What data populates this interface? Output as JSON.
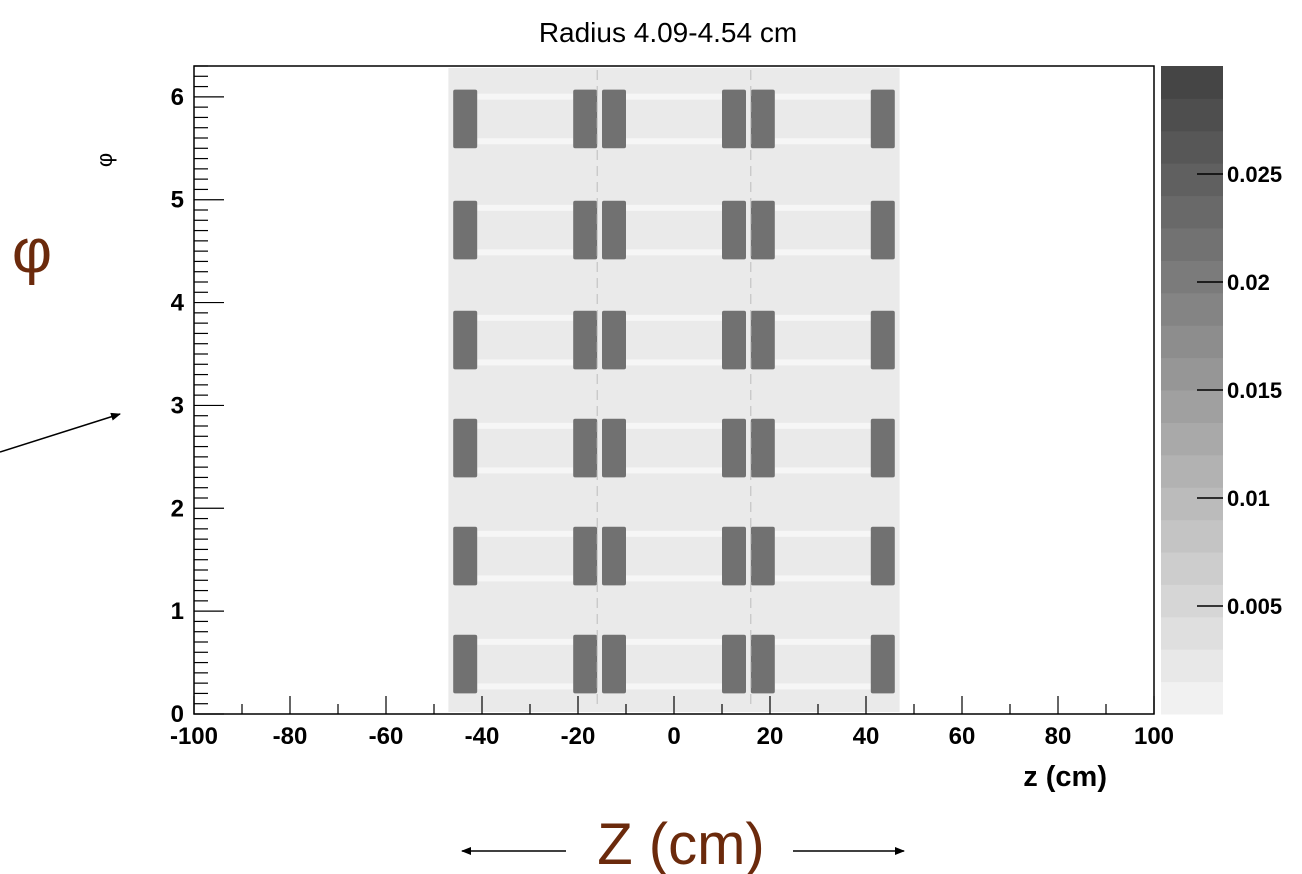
{
  "chart_data": {
    "type": "heatmap",
    "title": "Radius 4.09-4.54 cm",
    "xlabel": "z (cm)",
    "ylabel": "φ",
    "xlim": [
      -100,
      100
    ],
    "ylim": [
      0,
      6.3
    ],
    "x_ticks": [
      "-100",
      "-80",
      "-60",
      "-40",
      "-20",
      "0",
      "20",
      "40",
      "60",
      "80",
      "100"
    ],
    "y_ticks": [
      "0",
      "1",
      "2",
      "3",
      "4",
      "5",
      "6"
    ],
    "colorbar_ticks": [
      "0.005",
      "0.01",
      "0.015",
      "0.02",
      "0.025"
    ],
    "colorbar_range": [
      0,
      0.03
    ],
    "grid": false,
    "background_band": {
      "z_range": [
        -47,
        47
      ],
      "value": 0.002
    },
    "light_strips": {
      "value": 0.0
    },
    "module_columns_z": [
      [
        -46,
        -41
      ],
      [
        -21,
        -16
      ],
      [
        -15,
        -10
      ],
      [
        10,
        15
      ],
      [
        16,
        21
      ],
      [
        41,
        46
      ]
    ],
    "module_rows_phi": [
      [
        0.2,
        0.77
      ],
      [
        1.25,
        1.82
      ],
      [
        2.3,
        2.87
      ],
      [
        3.35,
        3.92
      ],
      [
        4.42,
        4.99
      ],
      [
        5.5,
        6.07
      ]
    ],
    "module_value": 0.022,
    "colors": {
      "background": "#ffffff",
      "annotation": "#6b2a0c",
      "module": "#666666",
      "band": "#e4e4e4"
    }
  },
  "annotations": {
    "phi_symbol": "φ",
    "z_axis_label": "Z (cm)"
  }
}
